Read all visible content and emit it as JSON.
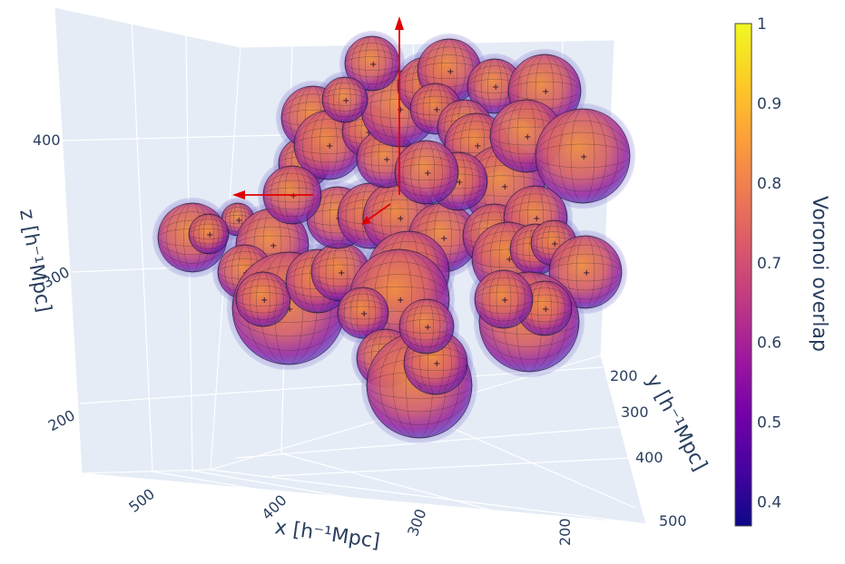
{
  "chart_data": {
    "type": "scatter3d",
    "description_axes": {
      "x": {
        "label": "x [h⁻¹Mpc]",
        "ticks": [
          500,
          400,
          300,
          200
        ]
      },
      "y": {
        "label": "y [h⁻¹Mpc]",
        "ticks": [
          200,
          300,
          400,
          500
        ]
      },
      "z": {
        "label": "z [h⁻¹Mpc]",
        "ticks": [
          200,
          300,
          400
        ]
      }
    },
    "colorbar": {
      "title": "Voronoi overlap",
      "range": [
        0.37,
        1.0
      ],
      "ticks": [
        0.4,
        0.5,
        0.6,
        0.7,
        0.8,
        0.9,
        1
      ],
      "colors": [
        "#0d0887",
        "#46039f",
        "#7201a8",
        "#9c179e",
        "#bd3786",
        "#d8576b",
        "#ed7953",
        "#fb9f3a",
        "#fdca26",
        "#f0f921"
      ]
    },
    "grid": true,
    "scene_background": "#e5ecf6",
    "arrows_color": "#e00000"
  }
}
